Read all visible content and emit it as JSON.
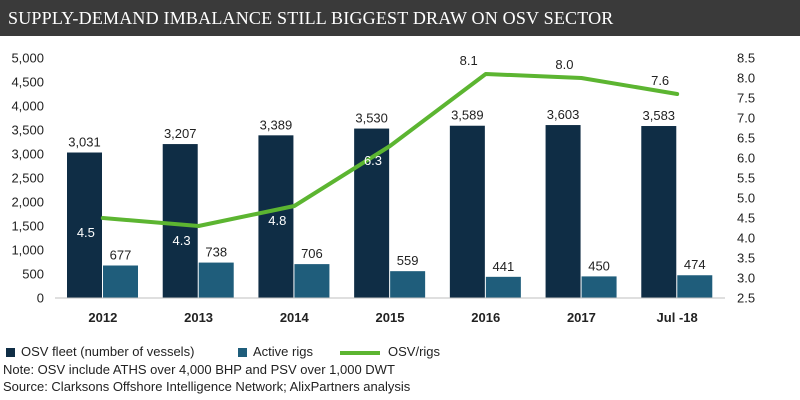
{
  "title": "SUPPLY-DEMAND IMBALANCE STILL BIGGEST DRAW ON OSV SECTOR",
  "colors": {
    "fleet": "#0f2d45",
    "rigs": "#1f5d7b",
    "ratio": "#5cb531",
    "title_bg": "#3a3a3a"
  },
  "chart_data": {
    "type": "bar",
    "categories": [
      "2012",
      "2013",
      "2014",
      "2015",
      "2016",
      "2017",
      "Jul -18"
    ],
    "series": [
      {
        "name": "OSV fleet (number of  vessels)",
        "type": "bar",
        "axis": "left",
        "values": [
          3031,
          3207,
          3389,
          3530,
          3589,
          3603,
          3583
        ],
        "labels": [
          "3,031",
          "3,207",
          "3,389",
          "3,530",
          "3,589",
          "3,603",
          "3,583"
        ]
      },
      {
        "name": "Active rigs",
        "type": "bar",
        "axis": "left",
        "values": [
          677,
          738,
          706,
          559,
          441,
          450,
          474
        ],
        "labels": [
          "677",
          "738",
          "706",
          "559",
          "441",
          "450",
          "474"
        ]
      },
      {
        "name": "OSV/rigs",
        "type": "line",
        "axis": "right",
        "values": [
          4.5,
          4.3,
          4.8,
          6.3,
          8.1,
          8.0,
          7.6
        ],
        "labels": [
          "4.5",
          "4.3",
          "4.8",
          "6.3",
          "8.1",
          "8.0",
          "7.6"
        ]
      }
    ],
    "y_left": {
      "min": 0,
      "max": 5000,
      "step": 500,
      "ticks": [
        "0",
        "500",
        "1,000",
        "1,500",
        "2,000",
        "2,500",
        "3,000",
        "3,500",
        "4,000",
        "4,500",
        "5,000"
      ]
    },
    "y_right": {
      "min": 2.5,
      "max": 8.5,
      "step": 0.5,
      "ticks": [
        "2.5",
        "3.0",
        "3.5",
        "4.0",
        "4.5",
        "5.0",
        "5.5",
        "6.0",
        "6.5",
        "7.0",
        "7.5",
        "8.0",
        "8.5"
      ]
    },
    "legend_position": "bottom"
  },
  "legend": {
    "fleet": "OSV fleet (number of  vessels)",
    "rigs": "Active rigs",
    "ratio": "OSV/rigs"
  },
  "note": "Note: OSV include ATHS over 4,000 BHP and PSV over 1,000 DWT",
  "source": "Source: Clarksons Offshore Intelligence Network; AlixPartners analysis"
}
